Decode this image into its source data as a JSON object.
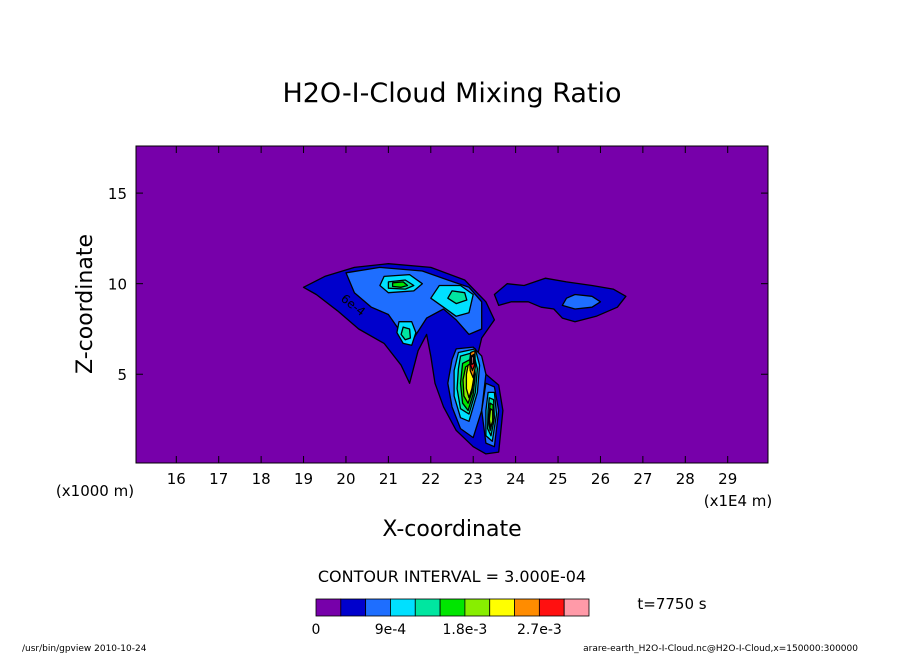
{
  "chart_data": {
    "type": "heatmap",
    "title": "H2O-I-Cloud Mixing Ratio",
    "xlabel": "X-coordinate",
    "ylabel": "Z-coordinate",
    "x_unit_label": "(x1E4 m)",
    "y_unit_label": "(x1000 m)",
    "xlim": [
      15.05,
      29.95
    ],
    "ylim": [
      0.1,
      17.6
    ],
    "x_ticks": [
      "16",
      "17",
      "18",
      "19",
      "20",
      "21",
      "22",
      "23",
      "24",
      "25",
      "26",
      "27",
      "28",
      "29"
    ],
    "y_ticks": [
      "5",
      "10",
      "15"
    ],
    "contour_interval_text": "CONTOUR INTERVAL = 3.000E-04",
    "contour_label": "6e-4",
    "time_text": "t=7750 s",
    "colorbar": {
      "colors": [
        "#7700aa",
        "#0000cc",
        "#1e6eff",
        "#00e0ff",
        "#00e6a0",
        "#00e600",
        "#88ee00",
        "#ffff00",
        "#ff8c00",
        "#ff1010",
        "#ff9aa8"
      ],
      "tick_labels": [
        "0",
        "9e-4",
        "1.8e-3",
        "2.7e-3"
      ],
      "tick_values": [
        0,
        0.0009,
        0.0018,
        0.0027
      ],
      "levels": [
        0,
        0.0003,
        0.0006,
        0.0009,
        0.0012,
        0.0015,
        0.0018,
        0.0021,
        0.0024,
        0.0027,
        0.003,
        0.0033
      ]
    },
    "regions": [
      {
        "level": 1,
        "points": [
          [
            19.0,
            9.8
          ],
          [
            19.5,
            10.4
          ],
          [
            20.2,
            10.9
          ],
          [
            21.0,
            11.1
          ],
          [
            22.0,
            10.9
          ],
          [
            22.8,
            10.2
          ],
          [
            23.3,
            9.0
          ],
          [
            23.5,
            8.0
          ],
          [
            23.2,
            7.0
          ],
          [
            23.1,
            6.0
          ],
          [
            23.3,
            5.0
          ],
          [
            23.6,
            4.4
          ],
          [
            23.7,
            3.0
          ],
          [
            23.6,
            0.7
          ],
          [
            23.3,
            0.6
          ],
          [
            23.0,
            1.0
          ],
          [
            22.6,
            1.9
          ],
          [
            22.3,
            3.2
          ],
          [
            22.1,
            4.5
          ],
          [
            22.0,
            6.0
          ],
          [
            21.9,
            7.2
          ],
          [
            21.7,
            6.3
          ],
          [
            21.5,
            4.5
          ],
          [
            21.3,
            5.5
          ],
          [
            20.9,
            6.7
          ],
          [
            20.3,
            7.5
          ],
          [
            19.8,
            8.5
          ],
          [
            19.3,
            9.4
          ]
        ]
      },
      {
        "level": 1,
        "points": [
          [
            24.2,
            9.9
          ],
          [
            24.7,
            10.3
          ],
          [
            25.2,
            10.1
          ],
          [
            25.8,
            9.9
          ],
          [
            26.3,
            9.7
          ],
          [
            26.6,
            9.3
          ],
          [
            26.4,
            8.7
          ],
          [
            25.9,
            8.2
          ],
          [
            25.4,
            7.9
          ],
          [
            25.1,
            8.1
          ],
          [
            24.9,
            8.6
          ],
          [
            24.6,
            8.7
          ],
          [
            24.3,
            9.0
          ],
          [
            23.9,
            9.0
          ],
          [
            23.6,
            8.8
          ],
          [
            23.5,
            9.4
          ],
          [
            23.8,
            10.0
          ]
        ]
      },
      {
        "level": 2,
        "points": [
          [
            20.0,
            10.6
          ],
          [
            20.8,
            10.9
          ],
          [
            21.8,
            10.7
          ],
          [
            22.4,
            10.2
          ],
          [
            22.9,
            9.8
          ],
          [
            23.2,
            9.0
          ],
          [
            23.2,
            7.5
          ],
          [
            22.9,
            7.2
          ],
          [
            22.6,
            8.0
          ],
          [
            22.3,
            8.6
          ],
          [
            21.9,
            8.1
          ],
          [
            21.6,
            7.0
          ],
          [
            21.3,
            7.3
          ],
          [
            21.0,
            8.3
          ],
          [
            20.6,
            8.7
          ],
          [
            20.2,
            9.5
          ]
        ]
      },
      {
        "level": 2,
        "points": [
          [
            22.6,
            6.4
          ],
          [
            23.0,
            6.5
          ],
          [
            23.2,
            6.0
          ],
          [
            23.3,
            5.0
          ],
          [
            23.2,
            3.0
          ],
          [
            23.0,
            1.5
          ],
          [
            22.7,
            2.0
          ],
          [
            22.5,
            3.2
          ],
          [
            22.4,
            4.5
          ],
          [
            22.5,
            5.8
          ]
        ]
      },
      {
        "level": 2,
        "points": [
          [
            23.3,
            4.5
          ],
          [
            23.5,
            4.3
          ],
          [
            23.6,
            3.0
          ],
          [
            23.5,
            1.0
          ],
          [
            23.3,
            1.2
          ],
          [
            23.2,
            3.0
          ]
        ]
      },
      {
        "level": 2,
        "points": [
          [
            25.4,
            9.4
          ],
          [
            25.8,
            9.3
          ],
          [
            26.0,
            9.0
          ],
          [
            25.8,
            8.7
          ],
          [
            25.4,
            8.6
          ],
          [
            25.1,
            8.8
          ],
          [
            25.2,
            9.2
          ]
        ]
      },
      {
        "level": 3,
        "points": [
          [
            20.9,
            10.4
          ],
          [
            21.5,
            10.5
          ],
          [
            21.8,
            10.0
          ],
          [
            21.6,
            9.6
          ],
          [
            21.0,
            9.5
          ],
          [
            20.8,
            9.9
          ]
        ]
      },
      {
        "level": 3,
        "points": [
          [
            22.2,
            9.9
          ],
          [
            22.7,
            9.9
          ],
          [
            23.0,
            9.4
          ],
          [
            22.9,
            8.4
          ],
          [
            22.6,
            8.2
          ],
          [
            22.3,
            8.7
          ],
          [
            22.0,
            9.2
          ]
        ]
      },
      {
        "level": 3,
        "points": [
          [
            21.25,
            7.9
          ],
          [
            21.55,
            7.9
          ],
          [
            21.65,
            7.3
          ],
          [
            21.55,
            6.6
          ],
          [
            21.35,
            6.7
          ],
          [
            21.2,
            7.3
          ]
        ]
      },
      {
        "level": 3,
        "points": [
          [
            22.65,
            6.2
          ],
          [
            23.05,
            6.4
          ],
          [
            23.15,
            5.5
          ],
          [
            23.1,
            4.0
          ],
          [
            22.9,
            2.4
          ],
          [
            22.7,
            2.6
          ],
          [
            22.55,
            3.8
          ],
          [
            22.55,
            5.2
          ]
        ]
      },
      {
        "level": 3,
        "points": [
          [
            23.35,
            4.0
          ],
          [
            23.5,
            4.0
          ],
          [
            23.55,
            2.8
          ],
          [
            23.45,
            1.3
          ],
          [
            23.3,
            1.6
          ],
          [
            23.3,
            3.0
          ]
        ]
      },
      {
        "level": 4,
        "points": [
          [
            21.0,
            10.1
          ],
          [
            21.4,
            10.2
          ],
          [
            21.6,
            9.9
          ],
          [
            21.4,
            9.7
          ],
          [
            21.0,
            9.75
          ]
        ]
      },
      {
        "level": 4,
        "points": [
          [
            22.5,
            9.6
          ],
          [
            22.8,
            9.5
          ],
          [
            22.85,
            9.1
          ],
          [
            22.6,
            8.9
          ],
          [
            22.4,
            9.2
          ]
        ]
      },
      {
        "level": 4,
        "points": [
          [
            21.35,
            7.6
          ],
          [
            21.5,
            7.5
          ],
          [
            21.52,
            7.0
          ],
          [
            21.4,
            6.9
          ],
          [
            21.3,
            7.2
          ]
        ]
      },
      {
        "level": 4,
        "points": [
          [
            22.7,
            6.0
          ],
          [
            23.0,
            6.2
          ],
          [
            23.1,
            5.3
          ],
          [
            23.05,
            4.0
          ],
          [
            22.9,
            2.8
          ],
          [
            22.7,
            3.1
          ],
          [
            22.62,
            4.2
          ],
          [
            22.65,
            5.3
          ]
        ]
      },
      {
        "level": 4,
        "points": [
          [
            23.38,
            3.7
          ],
          [
            23.48,
            3.6
          ],
          [
            23.5,
            2.6
          ],
          [
            23.42,
            1.6
          ],
          [
            23.34,
            2.0
          ],
          [
            23.35,
            3.0
          ]
        ]
      },
      {
        "level": 5,
        "points": [
          [
            21.1,
            10.05
          ],
          [
            21.35,
            10.1
          ],
          [
            21.45,
            9.9
          ],
          [
            21.3,
            9.8
          ],
          [
            21.1,
            9.85
          ]
        ]
      },
      {
        "level": 5,
        "points": [
          [
            22.75,
            5.6
          ],
          [
            23.0,
            5.9
          ],
          [
            23.05,
            5.0
          ],
          [
            23.0,
            3.9
          ],
          [
            22.88,
            3.0
          ],
          [
            22.75,
            3.4
          ],
          [
            22.7,
            4.5
          ]
        ]
      },
      {
        "level": 5,
        "points": [
          [
            23.4,
            3.4
          ],
          [
            23.47,
            3.3
          ],
          [
            23.47,
            2.5
          ],
          [
            23.4,
            1.9
          ],
          [
            23.36,
            2.4
          ]
        ]
      },
      {
        "level": 6,
        "points": [
          [
            22.82,
            5.4
          ],
          [
            23.0,
            5.7
          ],
          [
            23.02,
            4.9
          ],
          [
            22.97,
            4.0
          ],
          [
            22.88,
            3.4
          ],
          [
            22.78,
            3.8
          ],
          [
            22.76,
            4.7
          ]
        ]
      },
      {
        "level": 6,
        "points": [
          [
            23.41,
            3.1
          ],
          [
            23.46,
            3.0
          ],
          [
            23.46,
            2.4
          ],
          [
            23.41,
            2.1
          ],
          [
            23.38,
            2.5
          ]
        ]
      },
      {
        "level": 7,
        "points": [
          [
            22.88,
            5.5
          ],
          [
            23.02,
            5.7
          ],
          [
            23.03,
            5.0
          ],
          [
            22.97,
            4.2
          ],
          [
            22.9,
            3.7
          ],
          [
            22.84,
            4.2
          ],
          [
            22.84,
            5.0
          ]
        ]
      },
      {
        "level": 8,
        "points": [
          [
            22.94,
            6.2
          ],
          [
            23.04,
            6.3
          ],
          [
            23.05,
            5.4
          ],
          [
            23.0,
            4.8
          ],
          [
            22.93,
            5.2
          ],
          [
            22.92,
            5.8
          ]
        ]
      },
      {
        "level": 9,
        "points": [
          [
            22.95,
            6.0
          ],
          [
            23.02,
            6.1
          ],
          [
            23.03,
            5.5
          ],
          [
            22.98,
            5.2
          ],
          [
            22.94,
            5.5
          ]
        ]
      },
      {
        "level": 10,
        "points": [
          [
            22.96,
            5.95
          ],
          [
            23.01,
            6.0
          ],
          [
            23.01,
            5.6
          ],
          [
            22.97,
            5.55
          ]
        ]
      }
    ]
  },
  "footer": {
    "left": "/usr/bin/gpview   2010-10-24",
    "right": "arare-earth_H2O-I-Cloud.nc@H2O-I-Cloud,x=150000:300000"
  }
}
